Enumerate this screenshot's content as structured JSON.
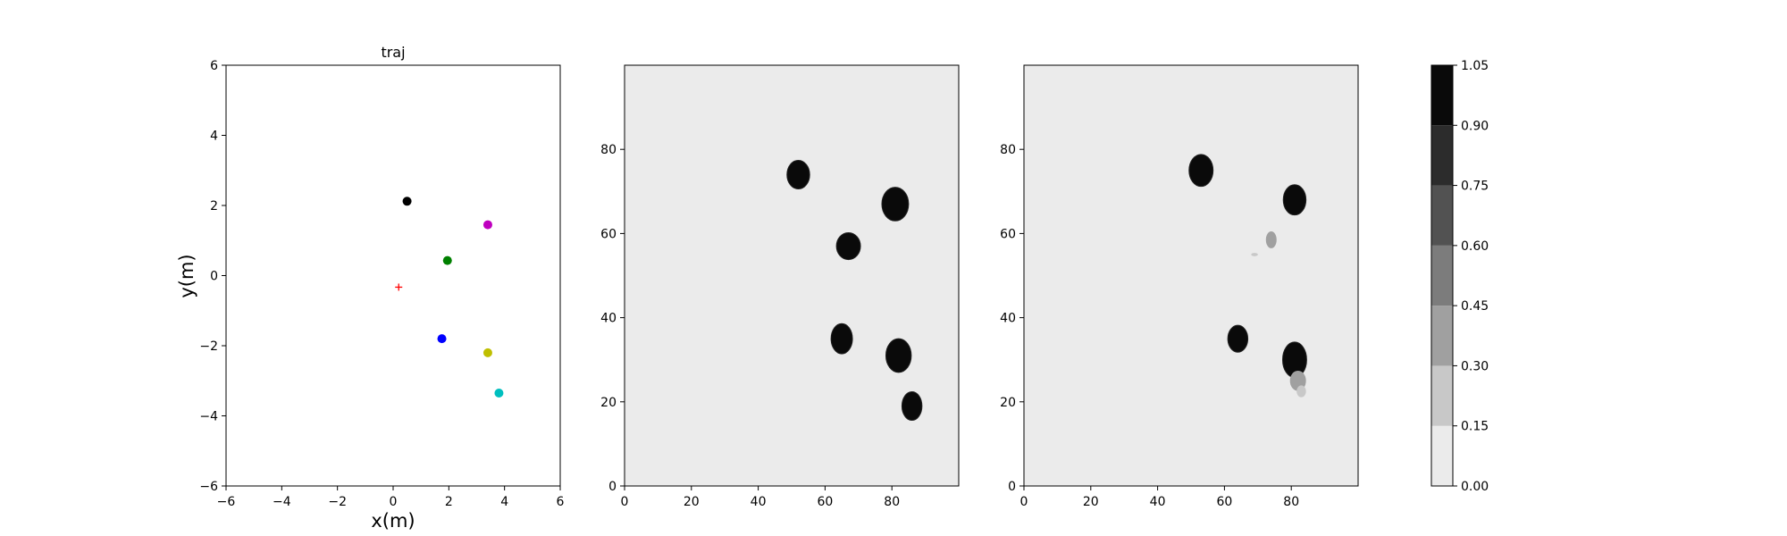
{
  "chart_data": [
    {
      "type": "scatter",
      "title": "traj",
      "xlabel": "x(m)",
      "ylabel": "y(m)",
      "xlim": [
        -6,
        6
      ],
      "ylim": [
        -6,
        6
      ],
      "xticks": [
        -6,
        -4,
        -2,
        0,
        2,
        4,
        6
      ],
      "yticks": [
        -6,
        -4,
        -2,
        0,
        2,
        4,
        6
      ],
      "grid": false,
      "series": [
        {
          "marker": "plus",
          "color": "#ff0000",
          "points": [
            [
              0.2,
              -0.33
            ]
          ]
        },
        {
          "marker": "dot",
          "color": "#000000",
          "points": [
            [
              0.5,
              2.12
            ]
          ]
        },
        {
          "marker": "dot",
          "color": "#bf00bf",
          "points": [
            [
              3.4,
              1.45
            ]
          ]
        },
        {
          "marker": "dot",
          "color": "#008000",
          "points": [
            [
              1.95,
              0.43
            ]
          ]
        },
        {
          "marker": "dot",
          "color": "#0000ff",
          "points": [
            [
              1.75,
              -1.8
            ]
          ]
        },
        {
          "marker": "dot",
          "color": "#bfbf00",
          "points": [
            [
              3.4,
              -2.2
            ]
          ]
        },
        {
          "marker": "dot",
          "color": "#00bfbf",
          "points": [
            [
              3.8,
              -3.35
            ]
          ]
        }
      ]
    },
    {
      "type": "heatmap",
      "title": "",
      "xlabel": "",
      "ylabel": "",
      "xlim": [
        0,
        100
      ],
      "ylim": [
        0,
        100
      ],
      "xticks": [
        0,
        20,
        40,
        60,
        80
      ],
      "yticks": [
        0,
        20,
        40,
        60,
        80
      ],
      "background_value": 0.05,
      "blobs": [
        {
          "x": 52,
          "y": 74,
          "rx": 3.4,
          "ry": 3.4,
          "value": 1.0
        },
        {
          "x": 81,
          "y": 67,
          "rx": 4.0,
          "ry": 4.0,
          "value": 1.0
        },
        {
          "x": 67,
          "y": 57,
          "rx": 3.6,
          "ry": 3.2,
          "value": 1.0
        },
        {
          "x": 65,
          "y": 35,
          "rx": 3.2,
          "ry": 3.6,
          "value": 1.0
        },
        {
          "x": 82,
          "y": 31,
          "rx": 3.8,
          "ry": 4.0,
          "value": 1.0
        },
        {
          "x": 86,
          "y": 19,
          "rx": 3.0,
          "ry": 3.4,
          "value": 1.0
        }
      ]
    },
    {
      "type": "heatmap",
      "title": "",
      "xlabel": "",
      "ylabel": "",
      "xlim": [
        0,
        100
      ],
      "ylim": [
        0,
        100
      ],
      "xticks": [
        0,
        20,
        40,
        60,
        80
      ],
      "yticks": [
        0,
        20,
        40,
        60,
        80
      ],
      "background_value": 0.05,
      "blobs": [
        {
          "x": 53,
          "y": 75,
          "rx": 3.6,
          "ry": 3.8,
          "value": 1.0
        },
        {
          "x": 81,
          "y": 68,
          "rx": 3.4,
          "ry": 3.6,
          "value": 1.0
        },
        {
          "x": 74,
          "y": 58.5,
          "rx": 1.6,
          "ry": 2.0,
          "value": 0.38
        },
        {
          "x": 69,
          "y": 55,
          "rx": 1.0,
          "ry": 0.4,
          "value": 0.25
        },
        {
          "x": 64,
          "y": 35,
          "rx": 3.0,
          "ry": 3.2,
          "value": 1.0
        },
        {
          "x": 81,
          "y": 30,
          "rx": 3.6,
          "ry": 4.2,
          "value": 1.0
        },
        {
          "x": 82,
          "y": 25,
          "rx": 2.4,
          "ry": 2.4,
          "value": 0.35
        },
        {
          "x": 83,
          "y": 22.5,
          "rx": 1.4,
          "ry": 1.4,
          "value": 0.25
        }
      ]
    },
    {
      "type": "colorbar",
      "ticks": [
        "0.00",
        "0.15",
        "0.30",
        "0.45",
        "0.60",
        "0.75",
        "0.90",
        "1.05"
      ],
      "levels": [
        {
          "from": 0.0,
          "to": 0.15,
          "color": "#ebebeb"
        },
        {
          "from": 0.15,
          "to": 0.3,
          "color": "#c8c8c8"
        },
        {
          "from": 0.3,
          "to": 0.45,
          "color": "#a0a0a0"
        },
        {
          "from": 0.45,
          "to": 0.6,
          "color": "#7c7c7c"
        },
        {
          "from": 0.6,
          "to": 0.75,
          "color": "#525252"
        },
        {
          "from": 0.75,
          "to": 0.9,
          "color": "#2c2c2c"
        },
        {
          "from": 0.9,
          "to": 1.05,
          "color": "#0a0a0a"
        }
      ]
    }
  ]
}
